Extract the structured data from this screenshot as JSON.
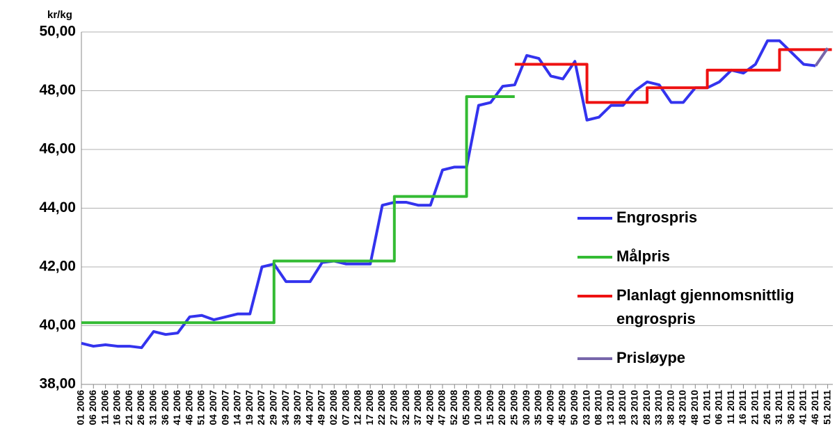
{
  "chart_data": {
    "type": "line",
    "y_unit": "kr/kg",
    "categories": [
      "01 2006",
      "06 2006",
      "11 2006",
      "16 2006",
      "21 2006",
      "26 2006",
      "31 2006",
      "36 2006",
      "41 2006",
      "46 2006",
      "51 2006",
      "04 2007",
      "09 2007",
      "14 2007",
      "19 2007",
      "24 2007",
      "29 2007",
      "34 2007",
      "39 2007",
      "44 2007",
      "49 2007",
      "02 2008",
      "07 2008",
      "12 2008",
      "17 2008",
      "22 2008",
      "27 2008",
      "32 2008",
      "37 2008",
      "42 2008",
      "47 2008",
      "52 2008",
      "05 2009",
      "10 2009",
      "15 2009",
      "20 2009",
      "25 2009",
      "30 2009",
      "35 2009",
      "40 2009",
      "45 2009",
      "50 2009",
      "03 2010",
      "08 2010",
      "13 2010",
      "18 2010",
      "23 2010",
      "28 2010",
      "33 2010",
      "38 2010",
      "43 2010",
      "48 2010",
      "01 2011",
      "06 2011",
      "11 2011",
      "16 2011",
      "21 2011",
      "26 2011",
      "31 2011",
      "36 2011",
      "41 2011",
      "46 2011",
      "51 2011"
    ],
    "series": [
      {
        "name": "Engrospris",
        "color": "#3333ee",
        "step": false,
        "values": [
          39.4,
          39.3,
          39.35,
          39.3,
          39.3,
          39.25,
          39.8,
          39.7,
          39.75,
          40.3,
          40.35,
          40.2,
          40.3,
          40.4,
          40.4,
          42.0,
          42.1,
          41.5,
          41.5,
          41.5,
          42.15,
          42.2,
          42.1,
          42.1,
          42.1,
          44.1,
          44.2,
          44.2,
          44.1,
          44.1,
          45.3,
          45.4,
          45.4,
          47.5,
          47.6,
          48.15,
          48.2,
          49.2,
          49.1,
          48.5,
          48.4,
          49.0,
          47.0,
          47.1,
          47.5,
          47.5,
          48.0,
          48.3,
          48.2,
          47.6,
          47.6,
          48.1,
          48.1,
          48.3,
          48.7,
          48.6,
          48.9,
          49.7,
          49.7,
          49.3,
          48.9,
          48.85,
          null
        ]
      },
      {
        "name": "Målpris",
        "color": "#33bb33",
        "step": true,
        "values": [
          40.1,
          40.1,
          40.1,
          40.1,
          40.1,
          40.1,
          40.1,
          40.1,
          40.1,
          40.1,
          40.1,
          40.1,
          40.1,
          40.1,
          40.1,
          40.1,
          42.2,
          42.2,
          42.2,
          42.2,
          42.2,
          42.2,
          42.2,
          42.2,
          42.2,
          42.2,
          44.4,
          44.4,
          44.4,
          44.4,
          44.4,
          44.4,
          47.8,
          47.8,
          47.8,
          47.8,
          47.8,
          null,
          null,
          null,
          null,
          null,
          null,
          null,
          null,
          null,
          null,
          null,
          null,
          null,
          null,
          null,
          null,
          null,
          null,
          null,
          null,
          null,
          null,
          null,
          null,
          null,
          null
        ]
      },
      {
        "name": "Planlagt gjennomsnittlig engrospris",
        "color": "#ee1111",
        "step": true,
        "values": [
          null,
          null,
          null,
          null,
          null,
          null,
          null,
          null,
          null,
          null,
          null,
          null,
          null,
          null,
          null,
          null,
          null,
          null,
          null,
          null,
          null,
          null,
          null,
          null,
          null,
          null,
          null,
          null,
          null,
          null,
          null,
          null,
          null,
          null,
          null,
          null,
          48.9,
          48.9,
          48.9,
          48.9,
          48.9,
          48.9,
          47.6,
          47.6,
          47.6,
          47.6,
          47.6,
          48.1,
          48.1,
          48.1,
          48.1,
          48.1,
          48.7,
          48.7,
          48.7,
          48.7,
          48.7,
          48.7,
          49.4,
          49.4,
          49.4,
          49.4,
          49.4
        ]
      },
      {
        "name": "Prisløype",
        "color": "#7766aa",
        "step": false,
        "values": [
          null,
          null,
          null,
          null,
          null,
          null,
          null,
          null,
          null,
          null,
          null,
          null,
          null,
          null,
          null,
          null,
          null,
          null,
          null,
          null,
          null,
          null,
          null,
          null,
          null,
          null,
          null,
          null,
          null,
          null,
          null,
          null,
          null,
          null,
          null,
          null,
          null,
          null,
          null,
          null,
          null,
          null,
          null,
          null,
          null,
          null,
          null,
          null,
          null,
          null,
          null,
          null,
          null,
          null,
          null,
          null,
          null,
          null,
          null,
          null,
          null,
          48.85,
          49.45
        ]
      }
    ],
    "ylim": [
      38,
      50
    ],
    "yticks": [
      {
        "value": 38,
        "label": "38,00"
      },
      {
        "value": 40,
        "label": "40,00"
      },
      {
        "value": 42,
        "label": "42,00"
      },
      {
        "value": 44,
        "label": "44,00"
      },
      {
        "value": 46,
        "label": "46,00"
      },
      {
        "value": 48,
        "label": "48,00"
      },
      {
        "value": 50,
        "label": "50,00"
      }
    ],
    "grid": true
  }
}
